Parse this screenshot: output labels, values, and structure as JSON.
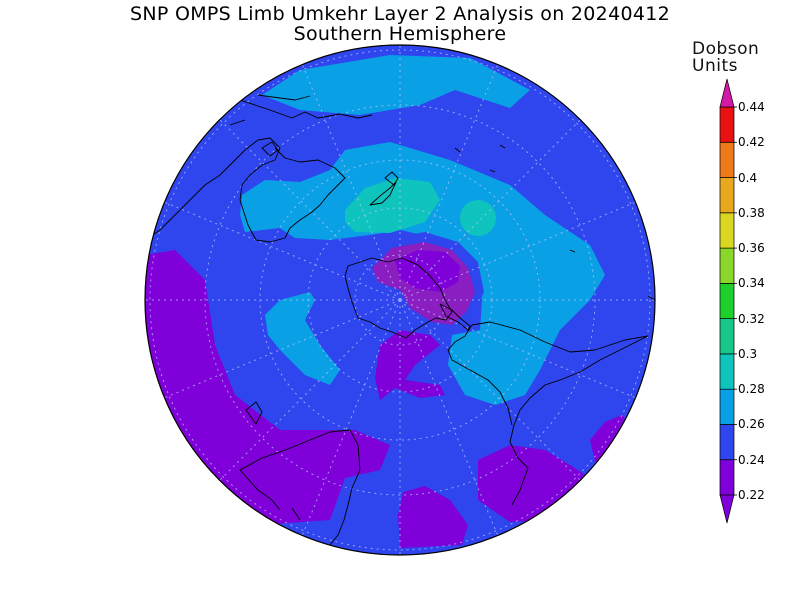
{
  "title": {
    "line1": "SNP OMPS Limb Umkehr Layer 2 Analysis on 20240412",
    "line2": "Southern Hemisphere"
  },
  "colorbar": {
    "title_line1": "Dobson",
    "title_line2": "Units",
    "levels": [
      "0.22",
      "0.24",
      "0.26",
      "0.28",
      "0.3",
      "0.32",
      "0.34",
      "0.36",
      "0.38",
      "0.4",
      "0.42",
      "0.44"
    ],
    "colors": [
      "#7f00d8",
      "#2f45ee",
      "#0aa0e6",
      "#10c4be",
      "#18c68a",
      "#1ed02c",
      "#8ad62a",
      "#dad722",
      "#e8a81e",
      "#ee7a1a",
      "#e81212",
      "#d21aa6"
    ]
  },
  "map": {
    "projection": "south-polar-stereographic",
    "colors": {
      "background_ozone": "#2f45ee",
      "low_ozone": "#7f00d8",
      "mid_ozone": "#0aa0e6",
      "high_ozone": "#10c4be",
      "minimum_core": "#8a1ec0",
      "coastline": "#000000",
      "graticule": "#b8c4ff"
    }
  }
}
